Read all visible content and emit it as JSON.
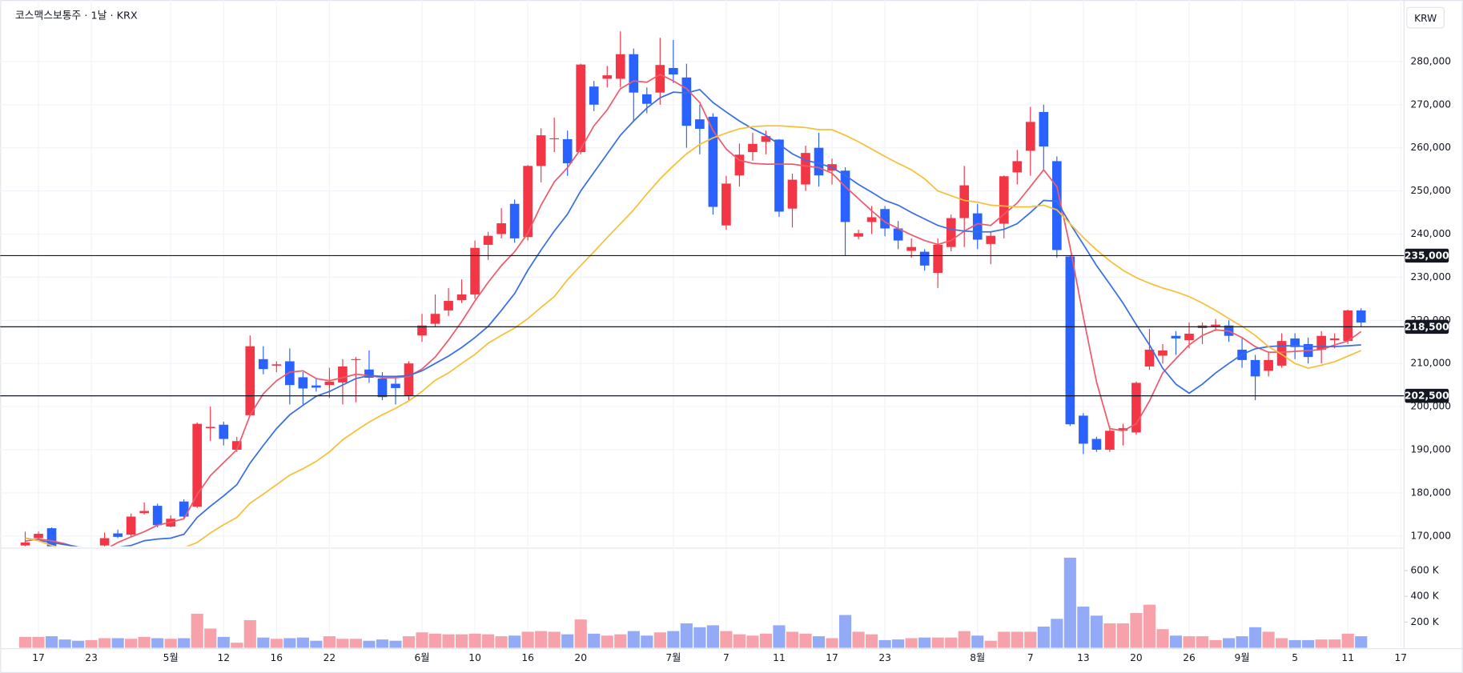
{
  "chart_data": {
    "type": "candlestick",
    "title": "코스맥스보통주 · 1날 · KRX",
    "currency": "KRW",
    "categories": [
      null,
      "17",
      null,
      null,
      null,
      "23",
      null,
      null,
      null,
      null,
      null,
      "5월",
      null,
      null,
      null,
      "12",
      null,
      null,
      null,
      "16",
      null,
      null,
      null,
      "22",
      null,
      null,
      null,
      null,
      null,
      null,
      "6월",
      null,
      null,
      null,
      "10",
      null,
      null,
      null,
      "16",
      null,
      null,
      null,
      "20",
      null,
      null,
      null,
      null,
      null,
      null,
      "7월",
      null,
      null,
      null,
      "7",
      null,
      null,
      null,
      "11",
      null,
      null,
      null,
      "17",
      null,
      null,
      null,
      "23",
      null,
      null,
      null,
      null,
      null,
      null,
      "8월",
      null,
      null,
      null,
      "7",
      null,
      null,
      null,
      "13",
      null,
      null,
      null,
      "20",
      null,
      null,
      null,
      "26",
      null,
      null,
      null,
      "9월",
      null,
      null,
      null,
      "5",
      null,
      null,
      null,
      "11",
      null,
      null,
      null,
      "17"
    ],
    "open": [
      167800,
      169500,
      171800,
      167000,
      165000,
      164500,
      167800,
      170600,
      170300,
      175300,
      177000,
      172200,
      178000,
      176800,
      195000,
      195800,
      190000,
      198000,
      211000,
      209500,
      210500,
      206800,
      204900,
      205000,
      205600,
      210800,
      208600,
      206500,
      205300,
      202500,
      216500,
      219200,
      222300,
      224700,
      226000,
      237500,
      240000,
      247000,
      239300,
      255800,
      262000,
      262000,
      259000,
      274200,
      276000,
      276000,
      281700,
      272400,
      272800,
      278500,
      276300,
      266600,
      267200,
      242000,
      253600,
      259000,
      261400,
      261900,
      245900,
      251500,
      260000,
      254700,
      254700,
      239400,
      242800,
      245800,
      241300,
      236100,
      235900,
      231000,
      237000,
      243700,
      244800,
      237700,
      242400,
      254300,
      259300,
      268300,
      256900,
      234800,
      197900,
      192500,
      190000,
      194400,
      194000,
      209300,
      211800,
      216400,
      215400,
      218200,
      218600,
      218800,
      213200,
      210800,
      208300,
      209500,
      215800,
      214500,
      213200,
      215400,
      215200,
      222300,
      null,
      null,
      null
    ],
    "high": [
      171000,
      171000,
      172000,
      167500,
      166000,
      167000,
      170800,
      171500,
      175200,
      177800,
      177500,
      174800,
      178500,
      196300,
      200000,
      196500,
      193000,
      216500,
      214000,
      210500,
      213500,
      208000,
      206500,
      209000,
      211000,
      211500,
      213000,
      208000,
      207000,
      210500,
      221500,
      226000,
      227500,
      229500,
      238500,
      240500,
      246000,
      248000,
      256000,
      264500,
      267000,
      264000,
      279500,
      275500,
      279000,
      287000,
      283000,
      274000,
      285500,
      285000,
      279500,
      270000,
      268000,
      253500,
      261000,
      263500,
      264000,
      262000,
      254000,
      260500,
      263500,
      257500,
      255500,
      241000,
      246500,
      246500,
      243000,
      239000,
      236500,
      239000,
      244500,
      255800,
      247000,
      240500,
      253600,
      259500,
      269500,
      270000,
      258000,
      235000,
      198500,
      193000,
      195500,
      196000,
      205800,
      218000,
      214500,
      217500,
      219500,
      219500,
      220300,
      220000,
      216000,
      212000,
      212500,
      217000,
      217000,
      216000,
      217500,
      217000,
      222500,
      222800,
      null,
      null,
      null
    ],
    "low": [
      167000,
      169000,
      167000,
      164000,
      163500,
      164000,
      167500,
      169500,
      169800,
      175000,
      172000,
      172000,
      174000,
      176500,
      192000,
      191000,
      189500,
      198000,
      207500,
      208000,
      200500,
      200500,
      203500,
      202000,
      200500,
      201000,
      205500,
      201500,
      200500,
      201500,
      215000,
      218500,
      221000,
      224000,
      225000,
      234000,
      239000,
      238000,
      238500,
      252000,
      259000,
      253500,
      258500,
      268500,
      274000,
      274000,
      266000,
      268000,
      270000,
      275000,
      260000,
      258500,
      244500,
      241000,
      251000,
      257000,
      258500,
      244000,
      241500,
      250000,
      251000,
      251500,
      235000,
      238800,
      240000,
      239500,
      236500,
      234500,
      231500,
      227500,
      236000,
      237000,
      236500,
      233000,
      239000,
      251500,
      253500,
      255000,
      234500,
      195500,
      189000,
      189500,
      189500,
      191000,
      193500,
      208500,
      210000,
      212000,
      213500,
      214500,
      217500,
      215000,
      209000,
      201500,
      207000,
      209000,
      211000,
      210000,
      210000,
      213500,
      214500,
      218500,
      null,
      null,
      null
    ],
    "close": [
      168500,
      170500,
      167500,
      165000,
      164500,
      166000,
      169500,
      169800,
      174500,
      175800,
      172500,
      174000,
      174500,
      196000,
      195300,
      192500,
      192000,
      214000,
      208700,
      209800,
      205000,
      204200,
      204400,
      205800,
      209300,
      211000,
      206700,
      202200,
      204300,
      210000,
      218800,
      221500,
      224500,
      226000,
      236800,
      239600,
      242500,
      239000,
      255800,
      262900,
      262200,
      256400,
      279300,
      270000,
      276800,
      281700,
      272800,
      270200,
      279200,
      277000,
      265100,
      264400,
      246300,
      251700,
      258400,
      260900,
      262700,
      245200,
      252600,
      258800,
      253600,
      256200,
      242800,
      240200,
      243900,
      241300,
      238500,
      237000,
      232700,
      237500,
      243700,
      251300,
      238700,
      239600,
      253400,
      256900,
      266000,
      260300,
      236300,
      195900,
      191400,
      190000,
      194400,
      195000,
      205500,
      213200,
      213000,
      215800,
      216900,
      218800,
      219000,
      216400,
      210800,
      207000,
      210800,
      215200,
      213800,
      211500,
      216400,
      215800,
      222300,
      219500,
      null,
      null,
      null
    ],
    "up_color": "#f23645",
    "down_color": "#2962ff",
    "moving_averages": [
      {
        "color": "#ef5b6b",
        "values": [
          168800,
          169300,
          168900,
          168200,
          167300,
          166600,
          166800,
          168500,
          169800,
          171000,
          172500,
          173200,
          174000,
          179600,
          184000,
          187000,
          190000,
          198000,
          203000,
          206000,
          208000,
          208300,
          206500,
          206000,
          206700,
          207500,
          207200,
          206700,
          206700,
          207000,
          208700,
          211500,
          215400,
          219700,
          224500,
          228800,
          232700,
          235900,
          240200,
          246700,
          252100,
          255400,
          259700,
          265100,
          268800,
          273700,
          275500,
          275200,
          277000,
          275500,
          273700,
          270500,
          264000,
          259700,
          257100,
          256400,
          256200,
          256200,
          256200,
          255800,
          255400,
          254100,
          251000,
          248200,
          245400,
          242800,
          241300,
          239800,
          238500,
          237600,
          238500,
          240700,
          242400,
          242000,
          244600,
          247200,
          251000,
          254900,
          251000,
          237000,
          220800,
          205700,
          194900,
          194400,
          196000,
          201300,
          207800,
          211100,
          214300,
          216500,
          217800,
          217500,
          216000,
          213900,
          212600,
          212600,
          212800,
          213000,
          213200,
          214300,
          215200,
          217400,
          null,
          null,
          null
        ]
      },
      {
        "color": "#3a6ee8",
        "values": [
          169500,
          169000,
          168500,
          168000,
          167500,
          167200,
          167000,
          167400,
          167800,
          168900,
          169300,
          169500,
          170400,
          174300,
          176900,
          179300,
          181900,
          186900,
          191000,
          194900,
          198100,
          200300,
          202400,
          203500,
          205000,
          206500,
          207200,
          207000,
          207000,
          207200,
          208300,
          210000,
          211700,
          213700,
          216000,
          218600,
          222300,
          226200,
          231600,
          236300,
          240700,
          244600,
          250000,
          254300,
          258600,
          262900,
          266200,
          269200,
          271600,
          272900,
          272700,
          273500,
          270500,
          268300,
          266200,
          264400,
          262900,
          260800,
          258600,
          257100,
          256400,
          255400,
          253600,
          251500,
          249700,
          247800,
          246700,
          245000,
          243500,
          242000,
          241100,
          240700,
          240500,
          240500,
          241100,
          242400,
          245000,
          247800,
          247600,
          242400,
          237600,
          232700,
          228400,
          224000,
          219000,
          214300,
          208900,
          205200,
          203100,
          205200,
          207800,
          210000,
          212100,
          213400,
          213900,
          214100,
          214100,
          213900,
          213900,
          213900,
          214100,
          214300,
          null,
          null,
          null
        ]
      },
      {
        "color": "#f7c038",
        "values": [
          169500,
          168900,
          167800,
          167000,
          166500,
          166000,
          165800,
          165600,
          165500,
          165600,
          165800,
          166200,
          167300,
          168500,
          170700,
          172600,
          174300,
          177600,
          179700,
          181900,
          184100,
          185600,
          187300,
          189500,
          192300,
          194400,
          196400,
          198100,
          199600,
          201300,
          203500,
          206100,
          207800,
          210000,
          212100,
          214700,
          216500,
          218200,
          220400,
          223000,
          225500,
          229400,
          232700,
          235900,
          239200,
          242400,
          245600,
          249300,
          252800,
          255800,
          258600,
          260800,
          262300,
          263400,
          264400,
          264900,
          265100,
          265100,
          264900,
          264700,
          264200,
          264200,
          262900,
          261400,
          259700,
          258000,
          256400,
          254900,
          252800,
          250000,
          248900,
          247800,
          247400,
          246700,
          246500,
          246300,
          246300,
          246700,
          245600,
          242400,
          239200,
          236300,
          233800,
          231600,
          229900,
          228600,
          227500,
          226600,
          225500,
          224000,
          222300,
          220400,
          218600,
          216500,
          213900,
          212100,
          210000,
          208900,
          209600,
          210400,
          211700,
          213000,
          null,
          null,
          null
        ]
      }
    ],
    "ylim": [
      167628,
      294263
    ],
    "yticks": [
      {
        "value": 170000,
        "label": "170,000"
      },
      {
        "value": 180000,
        "label": "180,000"
      },
      {
        "value": 190000,
        "label": "190,000"
      },
      {
        "value": 200000,
        "label": "200,000"
      },
      {
        "value": 210000,
        "label": "210,000"
      },
      {
        "value": 220000,
        "label": "220,000"
      },
      {
        "value": 230000,
        "label": "230,000"
      },
      {
        "value": 240000,
        "label": "240,000"
      },
      {
        "value": 250000,
        "label": "250,000"
      },
      {
        "value": 260000,
        "label": "260,000"
      },
      {
        "value": 270000,
        "label": "270,000"
      },
      {
        "value": 280000,
        "label": "280,000"
      }
    ],
    "grid": true,
    "price_lines": [
      {
        "value": 235000,
        "label": "235,000"
      },
      {
        "value": 218500,
        "label": "218,500"
      },
      {
        "value": 202500,
        "label": "202,500"
      }
    ],
    "volume": {
      "values": [
        85000,
        85000,
        90000,
        65000,
        55000,
        60000,
        75000,
        75000,
        70000,
        85000,
        75000,
        70000,
        75000,
        265000,
        150000,
        85000,
        40000,
        215000,
        80000,
        70000,
        75000,
        80000,
        55000,
        90000,
        70000,
        70000,
        55000,
        65000,
        55000,
        90000,
        120000,
        110000,
        105000,
        105000,
        110000,
        105000,
        90000,
        95000,
        125000,
        130000,
        125000,
        105000,
        220000,
        110000,
        95000,
        105000,
        130000,
        95000,
        120000,
        130000,
        190000,
        160000,
        175000,
        130000,
        105000,
        95000,
        110000,
        175000,
        125000,
        110000,
        90000,
        75000,
        255000,
        125000,
        105000,
        60000,
        65000,
        75000,
        80000,
        80000,
        80000,
        130000,
        95000,
        55000,
        125000,
        125000,
        125000,
        165000,
        225000,
        700000,
        320000,
        250000,
        190000,
        190000,
        270000,
        335000,
        145000,
        95000,
        90000,
        90000,
        60000,
        75000,
        90000,
        160000,
        125000,
        75000,
        60000,
        60000,
        65000,
        65000,
        110000,
        90000,
        null,
        null,
        null
      ],
      "up_color": "#f7a1ab",
      "down_color": "#93abf7",
      "ylim": [
        0,
        760000
      ],
      "yticks": [
        {
          "value": 200000,
          "label": "200 K"
        },
        {
          "value": 400000,
          "label": "400 K"
        },
        {
          "value": 600000,
          "label": "600 K"
        }
      ]
    }
  }
}
